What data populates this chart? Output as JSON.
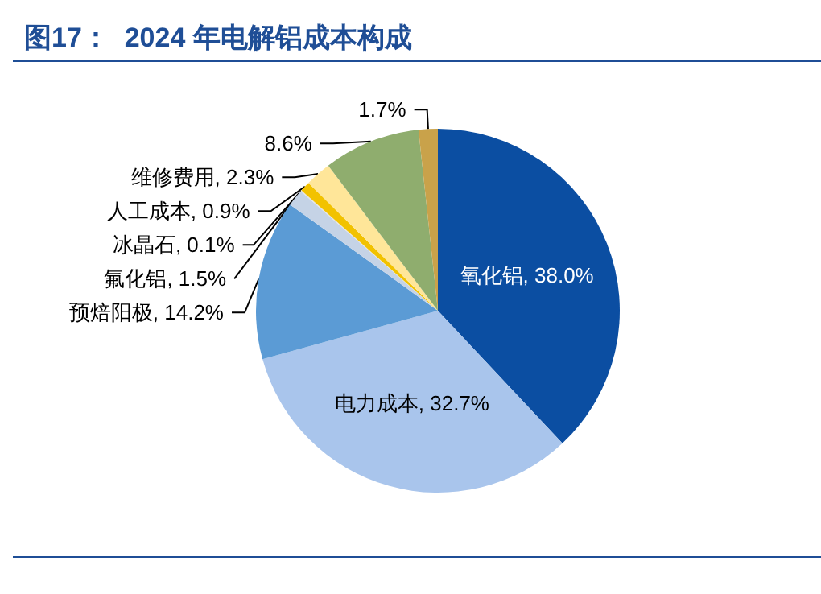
{
  "chart_data": {
    "type": "pie",
    "title": "图17：  2024 年电解铝成本构成",
    "categories": [
      "氧化铝",
      "电力成本",
      "预焙阳极",
      "氟化铝",
      "冰晶石",
      "人工成本",
      "维修费用",
      null,
      null
    ],
    "values": [
      38.0,
      32.7,
      14.2,
      1.5,
      0.1,
      0.9,
      2.3,
      8.6,
      1.7
    ],
    "value_labels": [
      "38.0%",
      "32.7%",
      "14.2%",
      "1.5%",
      "0.1%",
      "0.9%",
      "2.3%",
      "8.6%",
      "1.7%"
    ],
    "colors": [
      "#0b4ea2",
      "#a9c5ec",
      "#5b9bd5",
      "#c5d3e6",
      "#e3e3e3",
      "#f2c200",
      "#ffe699",
      "#8fad6e",
      "#c9a24a"
    ],
    "legend": false
  }
}
